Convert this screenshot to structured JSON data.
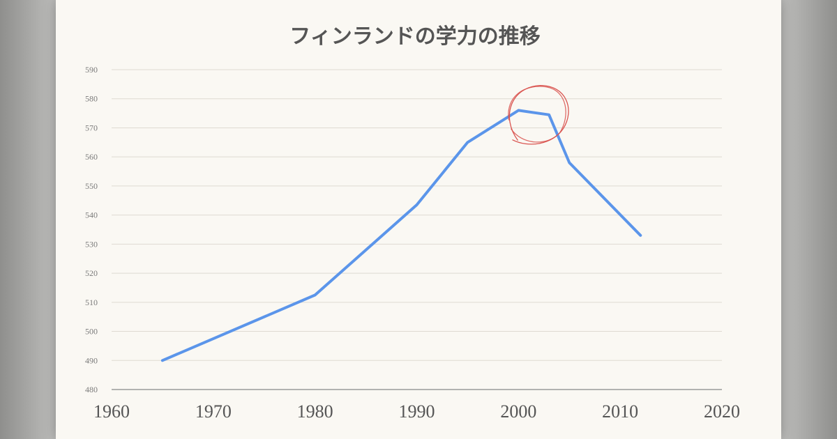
{
  "chart_data": {
    "type": "line",
    "title": "フィンランドの学力の推移",
    "xlabel": "",
    "ylabel": "",
    "xlim": [
      1960,
      2020
    ],
    "ylim": [
      480,
      590
    ],
    "x_ticks": [
      1960,
      1970,
      1980,
      1990,
      2000,
      2010,
      2020
    ],
    "y_ticks": [
      480,
      490,
      500,
      510,
      520,
      530,
      540,
      550,
      560,
      570,
      580,
      590
    ],
    "grid": true,
    "legend": "none",
    "series": [
      {
        "color": "#5b95ea",
        "x": [
          1965,
          1980,
          1990,
          1995,
          2000,
          2003,
          2005,
          2012
        ],
        "y": [
          490,
          512.5,
          543.5,
          565,
          576,
          574.5,
          558,
          533
        ]
      }
    ],
    "annotations": [
      {
        "type": "hand-drawn-circle",
        "color": "#d9534f",
        "x": 2002,
        "y": 575
      }
    ]
  }
}
